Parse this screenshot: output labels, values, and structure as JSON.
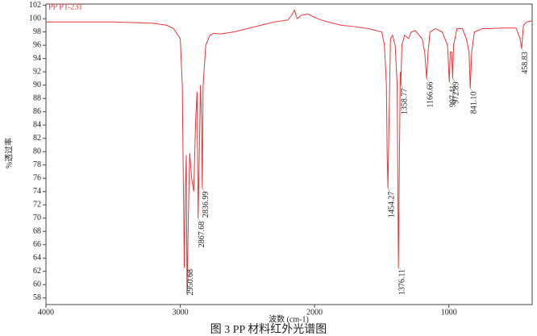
{
  "chart_data": {
    "type": "line",
    "title": "PP PT-231",
    "caption": "图 3 PP 材料红外光谱图",
    "x_label": "波数 (cm-1)",
    "y_label": "%透过率",
    "xlim": [
      4000,
      380
    ],
    "ylim": [
      57,
      102.2
    ],
    "xticks": [
      4000,
      3000,
      2000,
      1000
    ],
    "yticks": [
      58,
      60,
      62,
      64,
      66,
      68,
      70,
      72,
      74,
      76,
      78,
      80,
      82,
      84,
      86,
      88,
      90,
      92,
      94,
      96,
      98,
      100,
      102
    ],
    "x": [
      4000,
      3500,
      3200,
      3100,
      3050,
      3000,
      2985,
      2970,
      2962,
      2955,
      2950,
      2940,
      2930,
      2915,
      2900,
      2885,
      2875,
      2867,
      2858,
      2850,
      2842,
      2836,
      2830,
      2810,
      2780,
      2750,
      2700,
      2600,
      2500,
      2400,
      2300,
      2200,
      2170,
      2150,
      2130,
      2100,
      2050,
      2000,
      1950,
      1900,
      1800,
      1700,
      1600,
      1500,
      1480,
      1465,
      1460,
      1454,
      1445,
      1435,
      1420,
      1400,
      1385,
      1376,
      1370,
      1362,
      1358,
      1350,
      1330,
      1300,
      1280,
      1250,
      1200,
      1180,
      1166,
      1155,
      1140,
      1100,
      1050,
      1010,
      997,
      990,
      980,
      972,
      965,
      940,
      900,
      870,
      850,
      841,
      830,
      810,
      750,
      700,
      600,
      500,
      470,
      458,
      445,
      420,
      400,
      380
    ],
    "series": [
      {
        "name": "PP PT-231",
        "color": "#e8383d",
        "values": [
          99.5,
          99.5,
          99.3,
          99,
          98.5,
          97,
          90,
          62.5,
          75,
          79.5,
          58.5,
          70,
          79.8,
          76,
          74,
          85,
          89,
          70,
          80,
          90,
          85,
          74.5,
          90,
          96,
          97.5,
          97.8,
          97.7,
          98,
          98.5,
          99,
          99.5,
          99.8,
          100.5,
          101.3,
          100,
          100.5,
          100.7,
          100.2,
          99.8,
          99.5,
          99,
          98.8,
          98.5,
          98,
          96,
          90,
          80,
          74.5,
          85,
          97,
          97.5,
          96,
          90,
          62.5,
          75,
          92,
          90,
          96,
          97.5,
          97,
          98,
          98.2,
          97,
          95,
          91,
          95,
          98,
          98.5,
          98,
          96,
          90.5,
          95,
          95,
          91,
          96,
          98.5,
          98.5,
          97,
          95,
          89.5,
          95,
          98,
          98.5,
          98.5,
          98.6,
          98.6,
          97,
          95.5,
          99,
          99.5,
          99.6,
          99.7
        ]
      }
    ],
    "peaks": [
      {
        "x": 2950.68,
        "y": 58.5,
        "label": "2950.68"
      },
      {
        "x": 2867.68,
        "y": 70,
        "label": "2867.68"
      },
      {
        "x": 2836.99,
        "y": 74.5,
        "label": "2836.99"
      },
      {
        "x": 1454.27,
        "y": 74.5,
        "label": "1454.27"
      },
      {
        "x": 1376.11,
        "y": 62.5,
        "label": "1376.11"
      },
      {
        "x": 1358.77,
        "y": 90,
        "label": "1358.77"
      },
      {
        "x": 1166.66,
        "y": 91,
        "label": "1166.66"
      },
      {
        "x": 997.41,
        "y": 90.5,
        "label": "997.41"
      },
      {
        "x": 972.89,
        "y": 91,
        "label": "972.89"
      },
      {
        "x": 841.1,
        "y": 89.5,
        "label": "841.10"
      },
      {
        "x": 458.83,
        "y": 95.5,
        "label": "458.83"
      }
    ]
  }
}
